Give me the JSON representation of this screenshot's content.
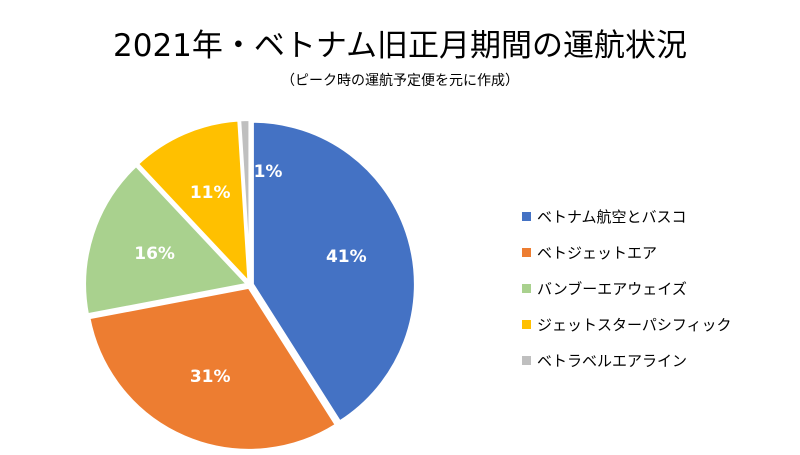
{
  "chart_data": {
    "type": "pie",
    "title": "2021年・ベトナム旧正月期間の運航状況",
    "subtitle": "（ピーク時の運航予定便を元に作成）",
    "legend_position": "right",
    "slices": [
      {
        "name": "ベトナム航空とバスコ",
        "value": 41,
        "label": "41%",
        "color": "#4472C4"
      },
      {
        "name": "ベトジェットエア",
        "value": 31,
        "label": "31%",
        "color": "#ED7D31"
      },
      {
        "name": "バンブーエアウェイズ",
        "value": 16,
        "label": "16%",
        "color": "#A9D18E"
      },
      {
        "name": "ジェットスターパシフィック",
        "value": 11,
        "label": "11%",
        "color": "#FFC000"
      },
      {
        "name": "ベトラベルエアライン",
        "value": 1,
        "label": "1%",
        "color": "#BFBFBF"
      }
    ]
  }
}
